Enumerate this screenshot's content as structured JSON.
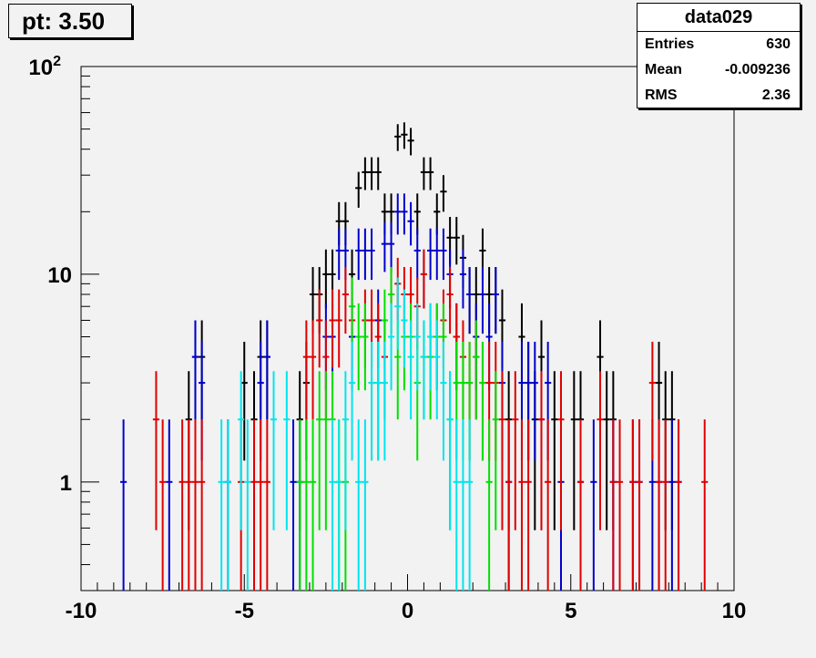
{
  "title_box": {
    "text": "pt: 3.50"
  },
  "stats": {
    "name": "data029",
    "rows": [
      {
        "label": "Entries",
        "value": "630"
      },
      {
        "label": "Mean",
        "value": "-0.009236"
      },
      {
        "label": "RMS",
        "value": "2.36"
      }
    ]
  },
  "chart_data": {
    "type": "scatter",
    "title": "",
    "xlabel": "",
    "ylabel": "",
    "xlim": [
      -10,
      10
    ],
    "ylim": [
      0.3,
      100
    ],
    "yscale": "log",
    "grid": false,
    "x_ticks": [
      "-10",
      "-5",
      "0",
      "5",
      "10"
    ],
    "y_ticks": [
      {
        "value": 1,
        "label": "1"
      },
      {
        "value": 10,
        "label": "10"
      },
      {
        "value": 100,
        "label": "10^2"
      }
    ],
    "bin_half_width": 0.1,
    "colors": {
      "black": "#000000",
      "blue": "#0000cc",
      "red": "#e00000",
      "green": "#00e000",
      "cyan": "#00e5ee"
    },
    "series": [
      {
        "color": "black",
        "points": [
          [
            -6.7,
            2
          ],
          [
            -6.5,
            4
          ],
          [
            -6.3,
            4
          ],
          [
            -5.0,
            3
          ],
          [
            -4.7,
            2
          ],
          [
            -4.5,
            4
          ],
          [
            -4.3,
            4
          ],
          [
            -3.3,
            2
          ],
          [
            -3.1,
            3
          ],
          [
            -2.9,
            8
          ],
          [
            -2.7,
            8
          ],
          [
            -2.5,
            10
          ],
          [
            -2.3,
            10
          ],
          [
            -2.1,
            18
          ],
          [
            -1.9,
            18
          ],
          [
            -1.7,
            10
          ],
          [
            -1.5,
            26
          ],
          [
            -1.3,
            31
          ],
          [
            -1.1,
            31
          ],
          [
            -0.9,
            31
          ],
          [
            -0.7,
            20
          ],
          [
            -0.5,
            20
          ],
          [
            -0.3,
            46
          ],
          [
            -0.1,
            47
          ],
          [
            0.1,
            44
          ],
          [
            0.3,
            20
          ],
          [
            0.5,
            31
          ],
          [
            0.7,
            31
          ],
          [
            0.9,
            20
          ],
          [
            1.1,
            25
          ],
          [
            1.3,
            15
          ],
          [
            1.5,
            15
          ],
          [
            1.7,
            12
          ],
          [
            1.9,
            8
          ],
          [
            2.1,
            8
          ],
          [
            2.3,
            13
          ],
          [
            2.5,
            8
          ],
          [
            2.7,
            8
          ],
          [
            2.9,
            6
          ],
          [
            3.1,
            2
          ],
          [
            3.5,
            5
          ],
          [
            3.7,
            3
          ],
          [
            3.9,
            2
          ],
          [
            4.1,
            4
          ],
          [
            4.5,
            2
          ],
          [
            5.1,
            2
          ],
          [
            5.3,
            2
          ],
          [
            5.9,
            4
          ],
          [
            6.1,
            2
          ],
          [
            6.3,
            2
          ],
          [
            7.7,
            3
          ],
          [
            7.9,
            2
          ],
          [
            8.1,
            2
          ]
        ]
      },
      {
        "color": "blue",
        "points": [
          [
            -8.7,
            1
          ],
          [
            -7.3,
            1
          ],
          [
            -6.5,
            4
          ],
          [
            -6.3,
            3
          ],
          [
            -5.5,
            1
          ],
          [
            -4.5,
            3
          ],
          [
            -4.3,
            4
          ],
          [
            -3.5,
            1
          ],
          [
            -3.3,
            1
          ],
          [
            -2.5,
            5
          ],
          [
            -2.3,
            5
          ],
          [
            -2.1,
            13
          ],
          [
            -1.9,
            13
          ],
          [
            -1.7,
            5
          ],
          [
            -1.5,
            13
          ],
          [
            -1.3,
            13
          ],
          [
            -1.1,
            13
          ],
          [
            -0.9,
            6
          ],
          [
            -0.7,
            14
          ],
          [
            -0.5,
            14
          ],
          [
            -0.3,
            20
          ],
          [
            -0.1,
            20
          ],
          [
            0.1,
            18
          ],
          [
            0.3,
            13
          ],
          [
            0.5,
            10
          ],
          [
            0.7,
            13
          ],
          [
            0.9,
            13
          ],
          [
            1.1,
            13
          ],
          [
            1.3,
            10
          ],
          [
            1.5,
            5
          ],
          [
            1.7,
            10
          ],
          [
            1.9,
            8
          ],
          [
            2.1,
            5
          ],
          [
            2.3,
            8
          ],
          [
            2.5,
            5
          ],
          [
            2.7,
            8
          ],
          [
            2.9,
            3
          ],
          [
            3.1,
            1
          ],
          [
            3.5,
            3
          ],
          [
            3.7,
            3
          ],
          [
            3.9,
            3
          ],
          [
            4.1,
            2
          ],
          [
            4.3,
            3
          ],
          [
            4.7,
            1
          ],
          [
            5.3,
            1
          ],
          [
            5.7,
            1
          ],
          [
            6.3,
            1
          ],
          [
            6.9,
            1
          ],
          [
            7.1,
            1
          ],
          [
            7.5,
            1
          ],
          [
            7.7,
            1
          ],
          [
            8.1,
            1
          ],
          [
            8.3,
            1
          ]
        ]
      },
      {
        "color": "red",
        "points": [
          [
            -7.7,
            2
          ],
          [
            -7.5,
            1
          ],
          [
            -6.9,
            1
          ],
          [
            -6.7,
            1
          ],
          [
            -6.5,
            1
          ],
          [
            -6.3,
            1
          ],
          [
            -5.1,
            1
          ],
          [
            -4.7,
            1
          ],
          [
            -4.5,
            1
          ],
          [
            -4.3,
            1
          ],
          [
            -3.1,
            4
          ],
          [
            -2.9,
            4
          ],
          [
            -2.7,
            6
          ],
          [
            -2.5,
            4
          ],
          [
            -2.3,
            6
          ],
          [
            -2.1,
            6
          ],
          [
            -1.9,
            8
          ],
          [
            -1.7,
            6
          ],
          [
            -1.3,
            6
          ],
          [
            -1.1,
            6
          ],
          [
            -0.9,
            5
          ],
          [
            -0.7,
            4
          ],
          [
            -0.5,
            8
          ],
          [
            -0.3,
            9
          ],
          [
            -0.1,
            8
          ],
          [
            0.1,
            8
          ],
          [
            0.3,
            7
          ],
          [
            0.5,
            10
          ],
          [
            0.7,
            5
          ],
          [
            0.9,
            5
          ],
          [
            1.1,
            6
          ],
          [
            1.3,
            8
          ],
          [
            1.5,
            5
          ],
          [
            1.7,
            4
          ],
          [
            1.9,
            3
          ],
          [
            2.1,
            4
          ],
          [
            2.3,
            3
          ],
          [
            2.5,
            3
          ],
          [
            2.7,
            3
          ],
          [
            2.9,
            2
          ],
          [
            3.1,
            1
          ],
          [
            3.3,
            2
          ],
          [
            3.5,
            1
          ],
          [
            3.7,
            1
          ],
          [
            4.1,
            2
          ],
          [
            4.3,
            1
          ],
          [
            4.7,
            2
          ],
          [
            5.3,
            1
          ],
          [
            5.9,
            2
          ],
          [
            6.3,
            1
          ],
          [
            6.5,
            1
          ],
          [
            6.9,
            1
          ],
          [
            7.1,
            1
          ],
          [
            7.5,
            3
          ],
          [
            7.7,
            1
          ],
          [
            7.9,
            1
          ],
          [
            8.3,
            1
          ],
          [
            9.1,
            1
          ]
        ]
      },
      {
        "color": "green",
        "points": [
          [
            -3.3,
            1
          ],
          [
            -3.1,
            1
          ],
          [
            -2.9,
            1
          ],
          [
            -2.7,
            2
          ],
          [
            -2.5,
            2
          ],
          [
            -2.3,
            2
          ],
          [
            -2.1,
            1
          ],
          [
            -1.9,
            1
          ],
          [
            -1.7,
            7
          ],
          [
            -1.5,
            5
          ],
          [
            -1.3,
            5
          ],
          [
            -1.1,
            3
          ],
          [
            -0.9,
            3
          ],
          [
            -0.7,
            6
          ],
          [
            -0.5,
            8
          ],
          [
            -0.3,
            4
          ],
          [
            -0.1,
            5
          ],
          [
            0.1,
            5
          ],
          [
            0.3,
            3
          ],
          [
            0.5,
            4
          ],
          [
            0.7,
            4
          ],
          [
            0.9,
            5
          ],
          [
            1.1,
            5
          ],
          [
            1.3,
            2
          ],
          [
            1.5,
            3
          ],
          [
            1.7,
            3
          ],
          [
            1.9,
            3
          ],
          [
            2.1,
            4
          ],
          [
            2.3,
            3
          ],
          [
            2.5,
            1
          ],
          [
            2.7,
            2
          ]
        ]
      },
      {
        "color": "cyan",
        "points": [
          [
            -5.7,
            1
          ],
          [
            -5.5,
            1
          ],
          [
            -5.1,
            2
          ],
          [
            -4.9,
            1
          ],
          [
            -4.1,
            2
          ],
          [
            -3.7,
            2
          ],
          [
            -2.3,
            1
          ],
          [
            -2.1,
            1
          ],
          [
            -1.9,
            2
          ],
          [
            -1.7,
            3
          ],
          [
            -1.5,
            1
          ],
          [
            -1.3,
            1
          ],
          [
            -1.1,
            3
          ],
          [
            -0.9,
            3
          ],
          [
            -0.7,
            3
          ],
          [
            -0.5,
            5
          ],
          [
            -0.3,
            7
          ],
          [
            -0.1,
            6
          ],
          [
            0.1,
            4
          ],
          [
            0.3,
            5
          ],
          [
            0.5,
            4
          ],
          [
            0.7,
            5
          ],
          [
            0.9,
            4
          ],
          [
            1.1,
            3
          ],
          [
            1.3,
            2
          ],
          [
            1.5,
            1
          ],
          [
            1.7,
            1
          ],
          [
            1.9,
            1
          ]
        ]
      }
    ]
  }
}
